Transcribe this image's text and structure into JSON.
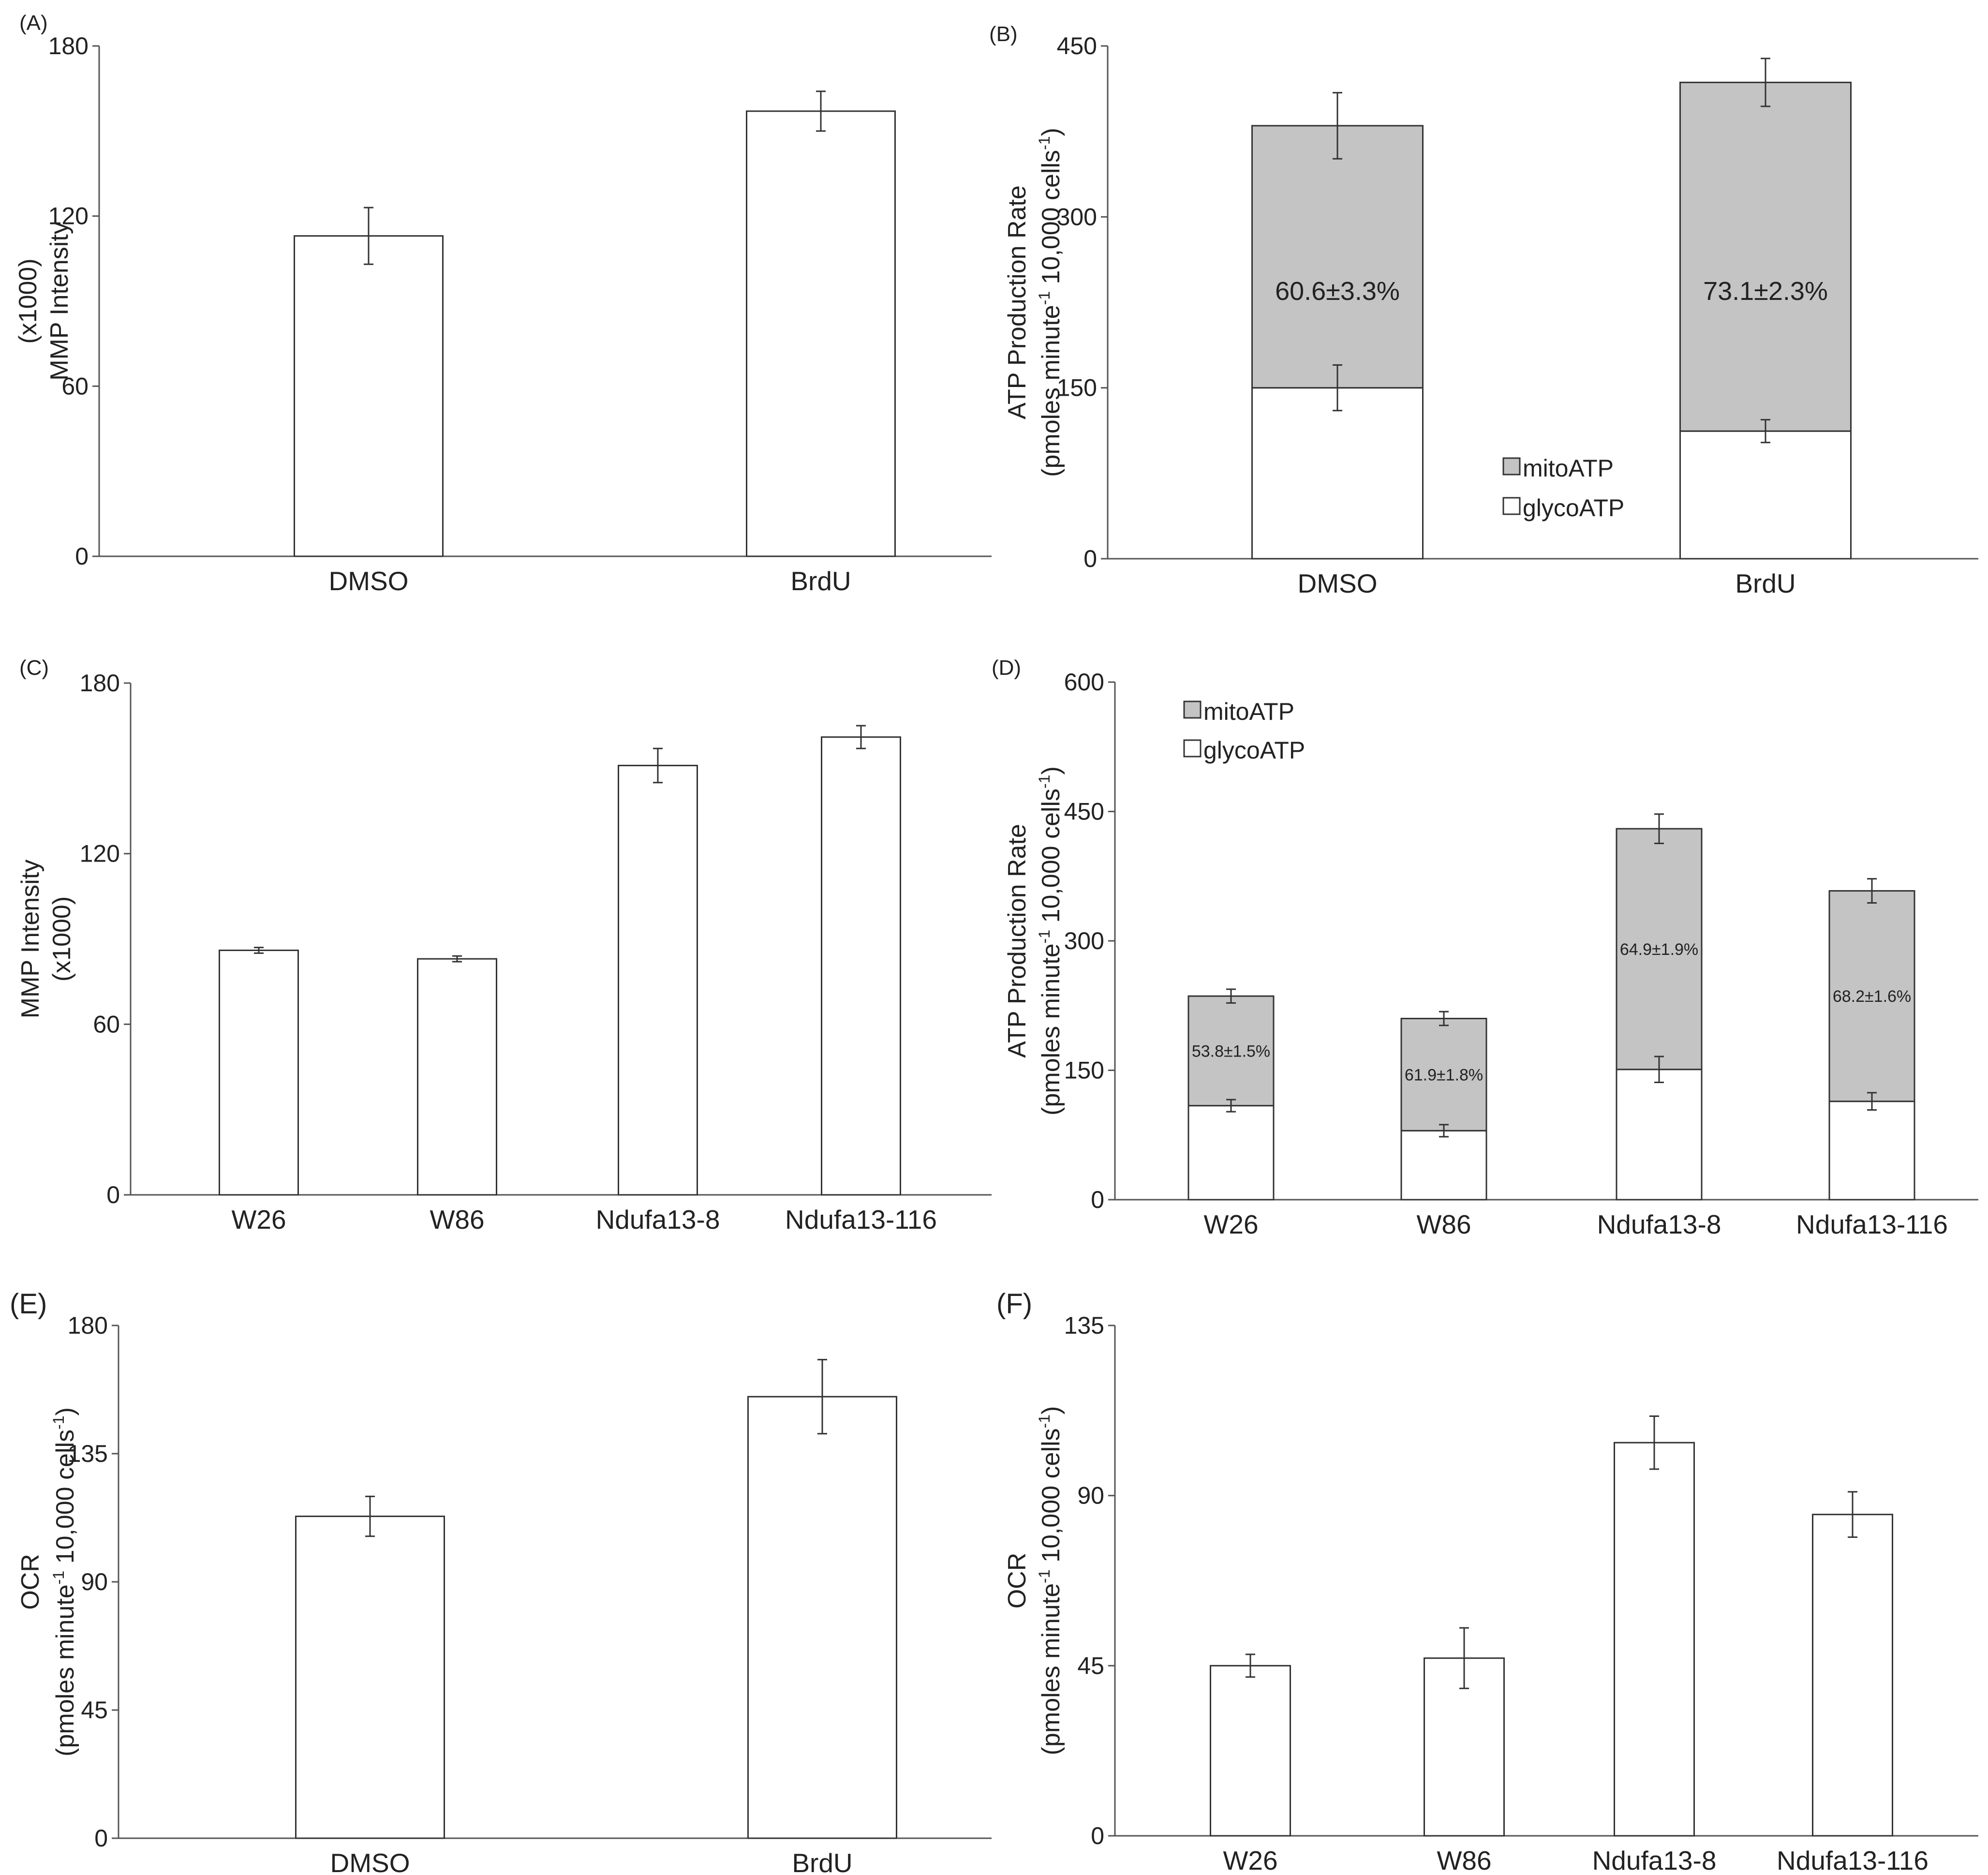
{
  "colors": {
    "mito": "#c4c4c4",
    "glyco": "#ffffff",
    "stroke": "#333333"
  },
  "chart_data": [
    {
      "id": "A",
      "panel_label": "(A)",
      "type": "bar",
      "ylabel_lines": [
        "MMP Intensity",
        "(x1000)"
      ],
      "ylim": [
        0,
        180
      ],
      "yticks": [
        0,
        60,
        120,
        180
      ],
      "categories": [
        "DMSO",
        "BrdU"
      ],
      "values": [
        113,
        157
      ],
      "errors": [
        10,
        7
      ]
    },
    {
      "id": "B",
      "panel_label": "(B)",
      "type": "stacked-bar",
      "ylabel_line1": "ATP Production Rate",
      "ylabel_line2_parts": [
        "(pmoles minute",
        "-1",
        " 10,000 cells",
        "-1",
        ")"
      ],
      "ylim": [
        0,
        450
      ],
      "yticks": [
        0,
        150,
        300,
        450
      ],
      "categories": [
        "DMSO",
        "BrdU"
      ],
      "series": [
        {
          "name": "glycoATP",
          "values": [
            150,
            112
          ],
          "errors": [
            20,
            10
          ]
        },
        {
          "name": "mitoATP",
          "values": [
            230,
            306
          ],
          "errors": [
            29,
            21
          ]
        }
      ],
      "annotations": [
        "60.6±3.3%",
        "73.1±2.3%"
      ],
      "legend": [
        "mitoATP",
        "glycoATP"
      ],
      "legend_position": "bottom-center"
    },
    {
      "id": "C",
      "panel_label": "(C)",
      "type": "bar",
      "ylabel_lines": [
        "MMP Intensity",
        "(x1000)"
      ],
      "ylim": [
        0,
        180
      ],
      "yticks": [
        0,
        60,
        120,
        180
      ],
      "categories": [
        "W26",
        "W86",
        "Ndufa13-8",
        "Ndufa13-116"
      ],
      "values": [
        86,
        83,
        151,
        161
      ],
      "errors": [
        1,
        1,
        6,
        4
      ]
    },
    {
      "id": "D",
      "panel_label": "(D)",
      "type": "stacked-bar",
      "ylabel_line1": "ATP Production Rate",
      "ylabel_line2_parts": [
        "(pmoles minute",
        "-1",
        " 10,000 cells",
        "-1",
        ")"
      ],
      "ylim": [
        0,
        600
      ],
      "yticks": [
        0,
        150,
        300,
        450,
        600
      ],
      "categories": [
        "W26",
        "W86",
        "Ndufa13-8",
        "Ndufa13-116"
      ],
      "series": [
        {
          "name": "glycoATP",
          "values": [
            109,
            80,
            151,
            114
          ],
          "errors": [
            7,
            7,
            15,
            10
          ]
        },
        {
          "name": "mitoATP",
          "values": [
            127,
            130,
            279,
            244
          ],
          "errors": [
            8,
            8,
            17,
            14
          ]
        }
      ],
      "annotations": [
        "53.8±1.5%",
        "61.9±1.8%",
        "64.9±1.9%",
        "68.2±1.6%"
      ],
      "legend": [
        "mitoATP",
        "glycoATP"
      ],
      "legend_position": "top-left"
    },
    {
      "id": "E",
      "panel_label": "(E)",
      "type": "bar",
      "ylabel_line1": "OCR",
      "ylabel_line2_parts": [
        "(pmoles minute",
        "-1",
        " 10,000 cells",
        "-1",
        ")"
      ],
      "ylim": [
        0,
        180
      ],
      "yticks": [
        0,
        45,
        90,
        135,
        180
      ],
      "categories": [
        "DMSO",
        "BrdU"
      ],
      "values": [
        113,
        155
      ],
      "errors": [
        7,
        13
      ]
    },
    {
      "id": "F",
      "panel_label": "(F)",
      "type": "bar",
      "ylabel_line1": "OCR",
      "ylabel_line2_parts": [
        "(pmoles minute",
        "-1",
        " 10,000 cells",
        "-1",
        ")"
      ],
      "ylim": [
        0,
        135
      ],
      "yticks": [
        0,
        45,
        90,
        135
      ],
      "categories": [
        "W26",
        "W86",
        "Ndufa13-8",
        "Ndufa13-116"
      ],
      "values": [
        45,
        47,
        104,
        85
      ],
      "errors": [
        3,
        8,
        7,
        6
      ]
    }
  ]
}
